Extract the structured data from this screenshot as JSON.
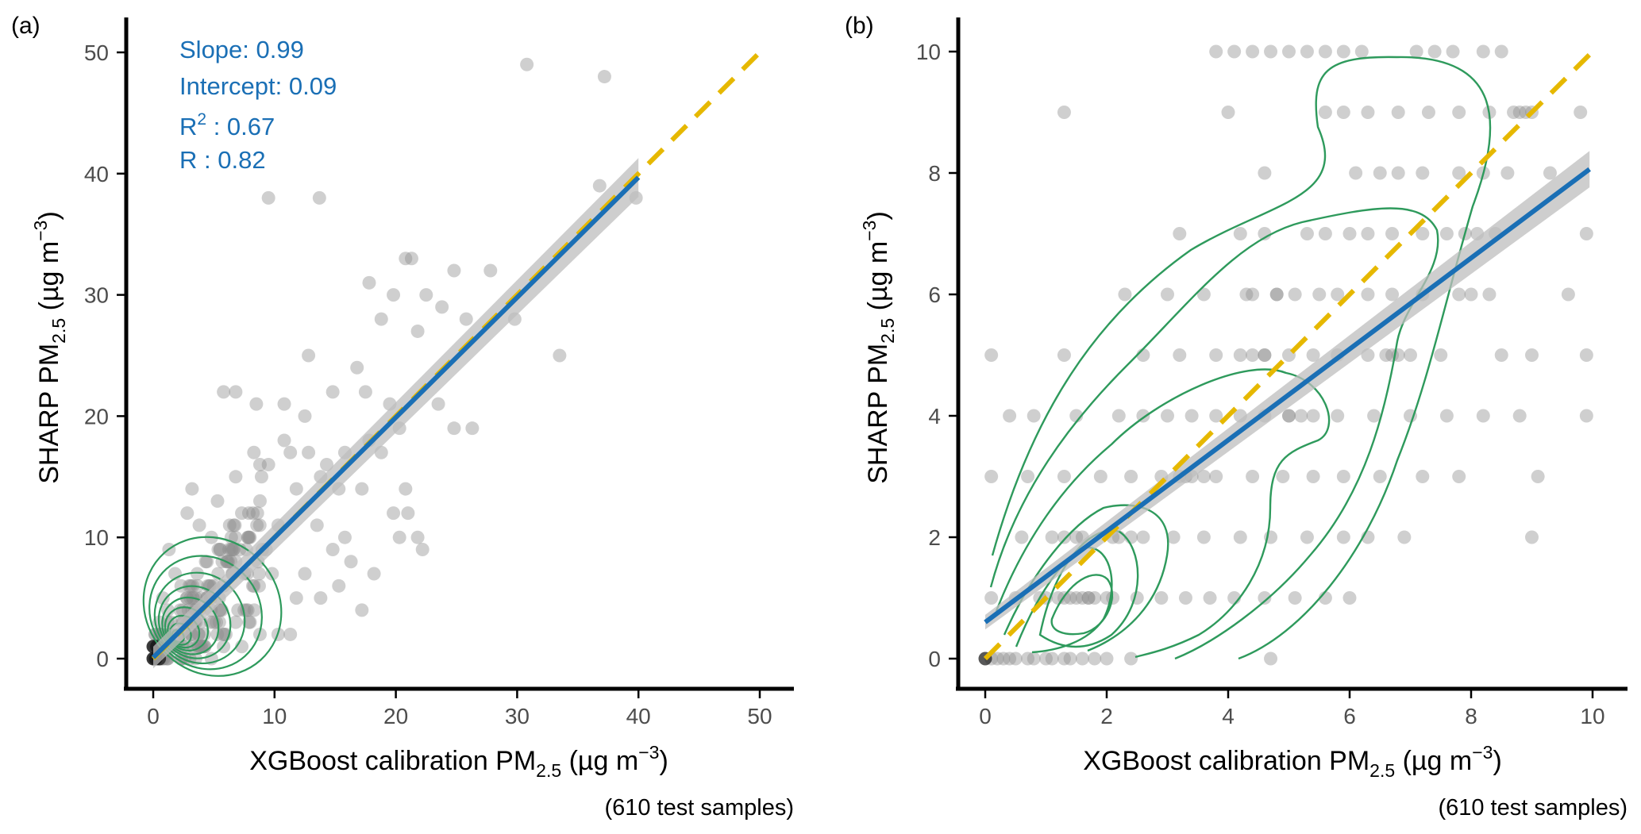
{
  "figure": {
    "panels": [
      {
        "id": "a",
        "panel_label": "(a)",
        "xlabel": {
          "prefix": "XGBoost calibration PM",
          "sub": "2.5",
          "unit_pre": " (µg m",
          "unit_sup": "−3",
          "unit_post": ")"
        },
        "ylabel": {
          "prefix": "SHARP PM",
          "sub": "2.5",
          "unit_pre": " (µg m",
          "unit_sup": "−3",
          "unit_post": ")"
        },
        "caption": "(610 test samples)",
        "stats": {
          "slope_label": "Slope: 0.99",
          "intercept_label": "Intercept: 0.09",
          "r2_prefix": "R",
          "r2_sup": "2",
          "r2_value": " : 0.67",
          "r_label": "R : 0.82"
        }
      },
      {
        "id": "b",
        "panel_label": "(b)",
        "xlabel": {
          "prefix": "XGBoost calibration PM",
          "sub": "2.5",
          "unit_pre": " (µg m",
          "unit_sup": "−3",
          "unit_post": ")"
        },
        "ylabel": {
          "prefix": "SHARP PM",
          "sub": "2.5",
          "unit_pre": " (µg m",
          "unit_sup": "−3",
          "unit_post": ")"
        },
        "caption": "(610 test samples)"
      }
    ]
  },
  "chart_data": [
    {
      "type": "scatter",
      "panel": "(a)",
      "title": "",
      "xlabel": "XGBoost calibration PM2.5 (µg m−3)",
      "ylabel": "SHARP PM2.5 (µg m−3)",
      "xlim": [
        -2,
        53
      ],
      "ylim": [
        -2,
        52
      ],
      "xticks": [
        0,
        10,
        20,
        30,
        40,
        50
      ],
      "yticks": [
        0,
        10,
        20,
        30,
        40,
        50
      ],
      "n_samples": 610,
      "points_sample": [
        [
          30.8,
          49
        ],
        [
          37.2,
          48
        ],
        [
          36.8,
          39
        ],
        [
          39.8,
          38
        ],
        [
          9.5,
          38
        ],
        [
          13.7,
          38
        ],
        [
          20.8,
          33
        ],
        [
          21.3,
          33
        ],
        [
          24.8,
          32
        ],
        [
          27.8,
          32
        ],
        [
          17.8,
          31
        ],
        [
          19.8,
          30
        ],
        [
          22.5,
          30
        ],
        [
          29.8,
          28
        ],
        [
          25.8,
          28
        ],
        [
          18.8,
          28
        ],
        [
          23.8,
          29
        ],
        [
          12.8,
          25
        ],
        [
          33.5,
          25
        ],
        [
          21.8,
          27
        ],
        [
          5.8,
          22
        ],
        [
          6.8,
          22
        ],
        [
          8.5,
          21
        ],
        [
          10.8,
          21
        ],
        [
          12.5,
          20
        ],
        [
          14.8,
          22
        ],
        [
          17.5,
          22
        ],
        [
          19.5,
          21
        ],
        [
          23.5,
          21
        ],
        [
          24.8,
          19
        ],
        [
          26.3,
          19
        ],
        [
          16.8,
          24
        ],
        [
          20.3,
          19
        ],
        [
          8.3,
          17
        ],
        [
          10.8,
          18
        ],
        [
          9.5,
          16
        ],
        [
          11.3,
          17
        ],
        [
          12.8,
          17
        ],
        [
          14.3,
          16
        ],
        [
          15.8,
          17
        ],
        [
          17.8,
          18
        ],
        [
          18.8,
          17
        ],
        [
          6.8,
          15
        ],
        [
          8.8,
          16
        ],
        [
          11.8,
          14
        ],
        [
          13.8,
          15
        ],
        [
          15.3,
          14
        ],
        [
          17.2,
          14
        ],
        [
          19.8,
          12
        ],
        [
          20.8,
          14
        ],
        [
          20.3,
          10
        ],
        [
          21.8,
          10
        ],
        [
          22.2,
          9
        ],
        [
          21.0,
          12
        ],
        [
          13.5,
          11
        ],
        [
          14.8,
          9
        ],
        [
          15.8,
          10
        ],
        [
          16.3,
          8
        ],
        [
          18.2,
          7
        ],
        [
          12.5,
          7
        ],
        [
          11.8,
          5
        ],
        [
          13.8,
          5
        ],
        [
          15.3,
          6
        ],
        [
          17.2,
          4
        ],
        [
          11.3,
          2
        ],
        [
          10.3,
          2
        ],
        [
          7.8,
          4
        ],
        [
          8.3,
          6
        ],
        [
          6.8,
          8
        ],
        [
          5.5,
          9
        ],
        [
          3.2,
          14
        ],
        [
          2.8,
          12
        ],
        [
          1.3,
          9
        ],
        [
          4.8,
          10
        ],
        [
          3.8,
          11
        ],
        [
          1.8,
          7
        ],
        [
          2.3,
          6
        ],
        [
          3.3,
          5
        ],
        [
          0.8,
          5
        ],
        [
          1.2,
          4
        ],
        [
          0.5,
          3
        ],
        [
          2.8,
          3
        ],
        [
          4.2,
          2
        ],
        [
          5.8,
          1
        ],
        [
          6.8,
          3
        ],
        [
          7.3,
          1
        ],
        [
          8.8,
          2
        ],
        [
          0.8,
          2
        ],
        [
          1.8,
          1
        ],
        [
          2.8,
          1
        ],
        [
          0.3,
          1
        ],
        [
          1.2,
          0
        ],
        [
          2.3,
          0
        ],
        [
          3.5,
          0
        ],
        [
          4.8,
          0
        ],
        [
          0.2,
          0
        ],
        [
          0.6,
          0
        ],
        [
          2.0,
          2
        ],
        [
          3.8,
          4
        ],
        [
          4.5,
          6
        ],
        [
          9.8,
          7
        ],
        [
          9.3,
          9
        ],
        [
          10.3,
          11
        ],
        [
          7.3,
          12
        ],
        [
          8.8,
          13
        ],
        [
          5.3,
          13
        ],
        [
          6.3,
          11
        ],
        [
          7.8,
          10
        ]
      ],
      "regression": {
        "slope": 0.99,
        "intercept": 0.09,
        "x_range": [
          0,
          40
        ],
        "r2": 0.67,
        "r": 0.82
      },
      "identity_line": {
        "x_range": [
          0,
          50
        ]
      },
      "colors": {
        "points": "#8c8c8c",
        "regression": "#1a6fb5",
        "ci_band": "#bdbdbd",
        "identity": "#e6b800",
        "contour": "#2e9a5c",
        "stats_text": "#1a6fb5"
      }
    },
    {
      "type": "scatter",
      "panel": "(b)",
      "title": "",
      "xlabel": "XGBoost calibration PM2.5 (µg m−3)",
      "ylabel": "SHARP PM2.5 (µg m−3)",
      "xlim": [
        -0.45,
        10.45
      ],
      "ylim": [
        -0.5,
        10.4
      ],
      "xticks": [
        0,
        2,
        4,
        6,
        8,
        10
      ],
      "yticks": [
        0,
        2,
        4,
        6,
        8,
        10
      ],
      "n_samples": 610,
      "points_sample": [
        [
          3.8,
          10
        ],
        [
          4.1,
          10
        ],
        [
          4.4,
          10
        ],
        [
          4.7,
          10
        ],
        [
          5.0,
          10
        ],
        [
          5.3,
          10
        ],
        [
          5.6,
          10
        ],
        [
          5.9,
          10
        ],
        [
          6.2,
          10
        ],
        [
          7.1,
          10
        ],
        [
          7.4,
          10
        ],
        [
          7.7,
          10
        ],
        [
          8.2,
          10
        ],
        [
          8.5,
          10
        ],
        [
          1.3,
          9
        ],
        [
          4.0,
          9
        ],
        [
          5.6,
          9
        ],
        [
          5.9,
          9
        ],
        [
          6.3,
          9
        ],
        [
          6.8,
          9
        ],
        [
          7.3,
          9
        ],
        [
          7.8,
          9
        ],
        [
          8.3,
          9
        ],
        [
          8.8,
          9
        ],
        [
          9.0,
          9
        ],
        [
          9.8,
          9
        ],
        [
          4.6,
          8
        ],
        [
          6.1,
          8
        ],
        [
          6.5,
          8
        ],
        [
          6.8,
          8
        ],
        [
          7.2,
          8
        ],
        [
          7.8,
          8
        ],
        [
          8.2,
          8
        ],
        [
          8.6,
          8
        ],
        [
          9.3,
          8
        ],
        [
          3.2,
          7
        ],
        [
          4.2,
          7
        ],
        [
          4.6,
          7
        ],
        [
          5.3,
          7
        ],
        [
          5.6,
          7
        ],
        [
          6.0,
          7
        ],
        [
          6.3,
          7
        ],
        [
          6.7,
          7
        ],
        [
          7.2,
          7
        ],
        [
          7.6,
          7
        ],
        [
          8.1,
          7
        ],
        [
          8.4,
          7
        ],
        [
          9.9,
          7
        ],
        [
          2.3,
          6
        ],
        [
          3.0,
          6
        ],
        [
          3.6,
          6
        ],
        [
          4.3,
          6
        ],
        [
          4.8,
          6
        ],
        [
          5.1,
          6
        ],
        [
          5.5,
          6
        ],
        [
          5.8,
          6
        ],
        [
          6.3,
          6
        ],
        [
          6.7,
          6
        ],
        [
          7.2,
          6
        ],
        [
          7.8,
          6
        ],
        [
          8.3,
          6
        ],
        [
          9.6,
          6
        ],
        [
          0.1,
          5
        ],
        [
          1.3,
          5
        ],
        [
          2.6,
          5
        ],
        [
          3.2,
          5
        ],
        [
          3.8,
          5
        ],
        [
          4.2,
          5
        ],
        [
          4.6,
          5
        ],
        [
          5.0,
          5
        ],
        [
          5.4,
          5
        ],
        [
          5.8,
          5
        ],
        [
          6.3,
          5
        ],
        [
          6.7,
          5
        ],
        [
          7.0,
          5
        ],
        [
          7.5,
          5
        ],
        [
          8.5,
          5
        ],
        [
          9.0,
          5
        ],
        [
          9.9,
          5
        ],
        [
          0.4,
          4
        ],
        [
          0.8,
          4
        ],
        [
          1.5,
          4
        ],
        [
          2.2,
          4
        ],
        [
          2.6,
          4
        ],
        [
          3.0,
          4
        ],
        [
          3.4,
          4
        ],
        [
          3.8,
          4
        ],
        [
          4.2,
          4
        ],
        [
          4.6,
          4
        ],
        [
          5.0,
          4
        ],
        [
          5.4,
          4
        ],
        [
          5.8,
          4
        ],
        [
          6.4,
          4
        ],
        [
          7.0,
          4
        ],
        [
          7.6,
          4
        ],
        [
          8.2,
          4
        ],
        [
          8.8,
          4
        ],
        [
          9.9,
          4
        ],
        [
          0.1,
          3
        ],
        [
          0.7,
          3
        ],
        [
          1.3,
          3
        ],
        [
          1.9,
          3
        ],
        [
          2.4,
          3
        ],
        [
          2.9,
          3
        ],
        [
          3.3,
          3
        ],
        [
          3.8,
          3
        ],
        [
          4.4,
          3
        ],
        [
          4.9,
          3
        ],
        [
          5.4,
          3
        ],
        [
          5.9,
          3
        ],
        [
          6.5,
          3
        ],
        [
          7.2,
          3
        ],
        [
          7.8,
          3
        ],
        [
          9.1,
          3
        ],
        [
          0.6,
          2
        ],
        [
          1.1,
          2
        ],
        [
          1.6,
          2
        ],
        [
          2.1,
          2
        ],
        [
          2.6,
          2
        ],
        [
          3.1,
          2
        ],
        [
          3.6,
          2
        ],
        [
          4.2,
          2
        ],
        [
          4.7,
          2
        ],
        [
          5.3,
          2
        ],
        [
          5.9,
          2
        ],
        [
          6.3,
          2
        ],
        [
          6.9,
          2
        ],
        [
          9.0,
          2
        ],
        [
          0.1,
          1
        ],
        [
          0.5,
          1
        ],
        [
          0.9,
          1
        ],
        [
          1.3,
          1
        ],
        [
          1.7,
          1
        ],
        [
          2.1,
          1
        ],
        [
          2.5,
          1
        ],
        [
          2.9,
          1
        ],
        [
          3.3,
          1
        ],
        [
          3.7,
          1
        ],
        [
          4.1,
          1
        ],
        [
          4.6,
          1
        ],
        [
          5.1,
          1
        ],
        [
          5.6,
          1
        ],
        [
          6.0,
          1
        ],
        [
          0.1,
          0
        ],
        [
          0.4,
          0
        ],
        [
          0.7,
          0
        ],
        [
          1.0,
          0
        ],
        [
          1.3,
          0
        ],
        [
          1.6,
          0
        ],
        [
          2.0,
          0
        ],
        [
          2.4,
          0
        ],
        [
          4.7,
          0
        ]
      ],
      "regression": {
        "slope": 0.75,
        "intercept": 0.6,
        "x_range": [
          0,
          9.95
        ]
      },
      "identity_line": {
        "x_range": [
          0,
          10
        ]
      },
      "colors": {
        "points": "#8c8c8c",
        "regression": "#1a6fb5",
        "ci_band": "#bdbdbd",
        "identity": "#e6b800",
        "contour": "#2e9a5c"
      }
    }
  ]
}
